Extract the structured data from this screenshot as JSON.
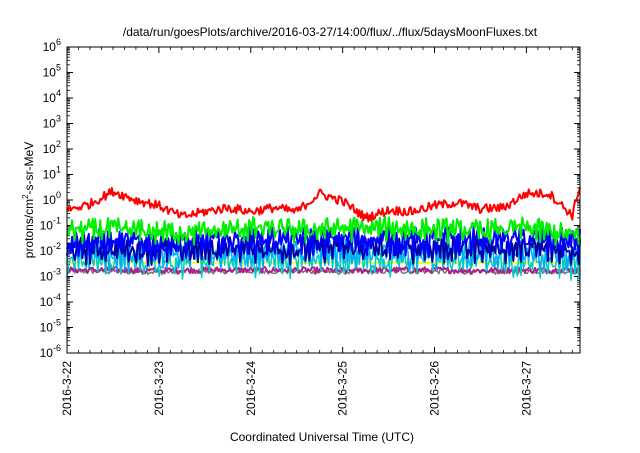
{
  "chart_data": {
    "type": "line",
    "title": "/data/run/goesPlots/archive/2016-03-27/14:00/flux/../flux/5daysMoonFluxes.txt",
    "xlabel": "Coordinated Universal Time (UTC)",
    "ylabel_parts": {
      "base": "protons/cm",
      "sup": "2",
      "rest": "-s-sr-MeV"
    },
    "x_start": "2016-3-22",
    "x_end": "2016-3-27 14:00",
    "x_ticks": [
      "2016-3-22",
      "2016-3-23",
      "2016-3-24",
      "2016-3-25",
      "2016-3-26",
      "2016-3-27"
    ],
    "y_scale": "log",
    "ylim": [
      1e-06,
      1000000.0
    ],
    "y_tick_exponents": [
      "-6",
      "-5",
      "-4",
      "-3",
      "-2",
      "-1",
      "0",
      "1",
      "2",
      "3",
      "4",
      "5",
      "6"
    ],
    "y_tick_base": "10",
    "series": [
      {
        "color": "#ff0000",
        "x_days": [
          0,
          0.25,
          0.5,
          0.75,
          1,
          1.25,
          1.5,
          1.75,
          2,
          2.25,
          2.5,
          2.75,
          3,
          3.25,
          3.5,
          3.75,
          4,
          4.25,
          4.5,
          4.75,
          5,
          5.25,
          5.5,
          5.58
        ],
        "values": [
          0.4,
          0.7,
          2.2,
          1.0,
          0.6,
          0.22,
          0.35,
          0.5,
          0.35,
          0.5,
          0.35,
          1.8,
          0.9,
          0.2,
          0.4,
          0.35,
          0.6,
          0.8,
          0.45,
          0.5,
          1.8,
          1.8,
          0.25,
          3.5
        ]
      },
      {
        "color": "#00ee00",
        "x_days": [
          0,
          0.5,
          1,
          1.5,
          2,
          2.5,
          3,
          3.5,
          4,
          4.5,
          5,
          5.5,
          5.58
        ],
        "values": [
          0.08,
          0.09,
          0.07,
          0.07,
          0.1,
          0.08,
          0.1,
          0.1,
          0.09,
          0.08,
          0.1,
          0.05,
          0.06
        ]
      },
      {
        "color": "#0000ff",
        "x_days": [
          0,
          0.5,
          1,
          1.5,
          2,
          2.5,
          3,
          3.5,
          4,
          4.5,
          5,
          5.5,
          5.58
        ],
        "values": [
          0.03,
          0.03,
          0.025,
          0.03,
          0.04,
          0.035,
          0.04,
          0.035,
          0.035,
          0.04,
          0.04,
          0.03,
          0.03
        ]
      },
      {
        "color": "#0000aa",
        "x_days": [
          0,
          0.5,
          1,
          1.5,
          2,
          2.5,
          3,
          3.5,
          4,
          4.5,
          5,
          5.5,
          5.58
        ],
        "values": [
          0.015,
          0.015,
          0.014,
          0.015,
          0.017,
          0.015,
          0.017,
          0.016,
          0.016,
          0.017,
          0.016,
          0.013,
          0.014
        ]
      },
      {
        "color": "#00aaff",
        "x_days": [
          0,
          0.5,
          1,
          1.5,
          2,
          2.5,
          3,
          3.5,
          4,
          4.5,
          5,
          5.5,
          5.58
        ],
        "values": [
          0.012,
          0.011,
          0.01,
          0.011,
          0.012,
          0.011,
          0.012,
          0.011,
          0.011,
          0.012,
          0.011,
          0.009,
          0.01
        ]
      },
      {
        "color": "#00cccc",
        "x_days": [
          0,
          0.5,
          1,
          1.5,
          2,
          2.5,
          3,
          3.5,
          4,
          4.5,
          5,
          5.5,
          5.58
        ],
        "values": [
          0.006,
          0.006,
          0.005,
          0.006,
          0.006,
          0.006,
          0.006,
          0.006,
          0.006,
          0.006,
          0.006,
          0.005,
          0.005
        ]
      },
      {
        "color": "#ffff00",
        "x_days": [
          0,
          5.58
        ],
        "values": [
          0.0035,
          0.0035
        ]
      },
      {
        "color": "#aa2288",
        "x_days": [
          0,
          0.5,
          1,
          1.5,
          2,
          2.5,
          3,
          3.5,
          4,
          4.5,
          5,
          5.5,
          5.58
        ],
        "values": [
          0.0018,
          0.0018,
          0.0017,
          0.0018,
          0.0018,
          0.0018,
          0.0017,
          0.0018,
          0.0018,
          0.0017,
          0.0018,
          0.0018,
          0.0018
        ]
      },
      {
        "color": "#777777",
        "x_days": [
          0,
          0.5,
          1,
          1.5,
          2,
          2.5,
          3,
          3.5,
          4,
          4.5,
          5,
          5.5,
          5.58
        ],
        "values": [
          0.0016,
          0.0016,
          0.0015,
          0.0016,
          0.0016,
          0.0016,
          0.0015,
          0.0016,
          0.0016,
          0.0015,
          0.0016,
          0.0016,
          0.0016
        ]
      }
    ]
  }
}
